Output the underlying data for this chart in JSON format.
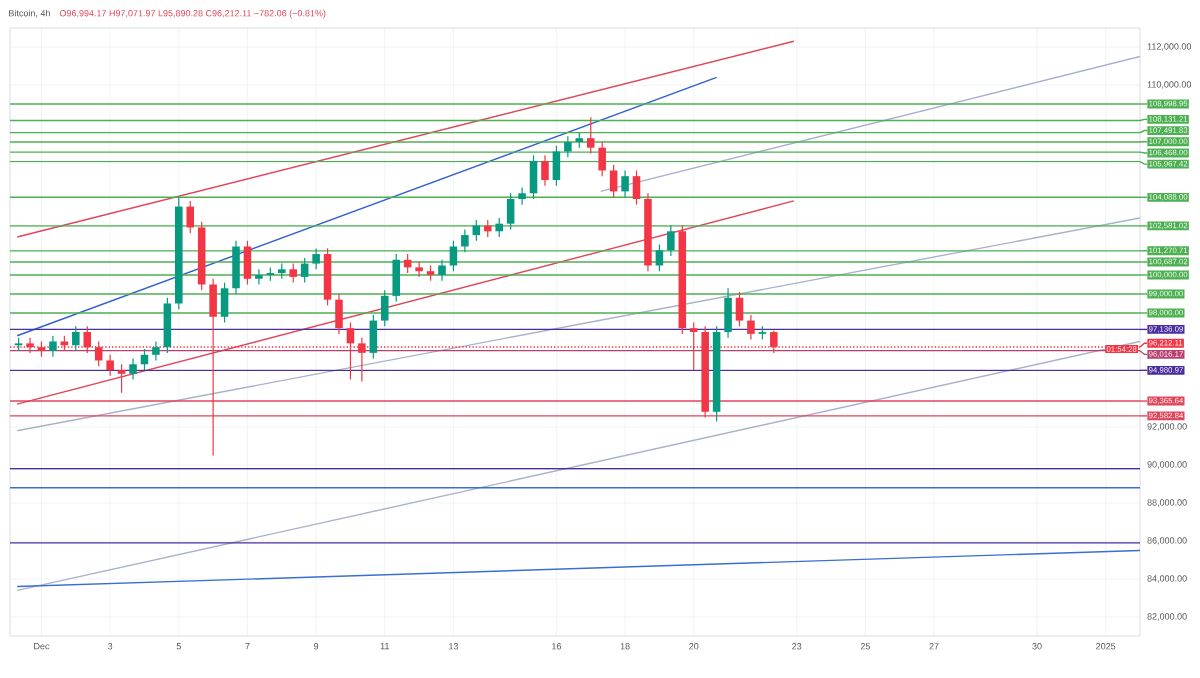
{
  "chart_data": {
    "type": "candlestick",
    "title": "Bitcoin, 4h",
    "annotations": [
      "O96,994.17 H97,071.97 L95,890.28 C96,212.11 −782.06 (−0.81%)",
      {
        "text": "01:54:28",
        "x": "2025-01-02",
        "y": 96100
      }
    ],
    "x": [
      "2024-11-30T08:00",
      "2024-11-30T16:00",
      "2024-12-01T00:00",
      "2024-12-01T08:00",
      "2024-12-01T16:00",
      "2024-12-02T00:00",
      "2024-12-02T08:00",
      "2024-12-02T16:00",
      "2024-12-03T00:00",
      "2024-12-03T08:00",
      "2024-12-03T16:00",
      "2024-12-04T00:00",
      "2024-12-04T08:00",
      "2024-12-04T16:00",
      "2024-12-05T00:00",
      "2024-12-05T08:00",
      "2024-12-05T16:00",
      "2024-12-06T00:00",
      "2024-12-06T08:00",
      "2024-12-06T16:00",
      "2024-12-07T00:00",
      "2024-12-07T08:00",
      "2024-12-07T16:00",
      "2024-12-08T00:00",
      "2024-12-08T08:00",
      "2024-12-08T16:00",
      "2024-12-09T00:00",
      "2024-12-09T08:00",
      "2024-12-09T16:00",
      "2024-12-10T00:00",
      "2024-12-10T08:00",
      "2024-12-10T16:00",
      "2024-12-11T00:00",
      "2024-12-11T08:00",
      "2024-12-11T16:00",
      "2024-12-12T00:00",
      "2024-12-12T08:00",
      "2024-12-12T16:00",
      "2024-12-13T00:00",
      "2024-12-13T08:00",
      "2024-12-13T16:00",
      "2024-12-14T00:00",
      "2024-12-14T08:00",
      "2024-12-14T16:00",
      "2024-12-15T00:00",
      "2024-12-15T08:00",
      "2024-12-15T16:00",
      "2024-12-16T00:00",
      "2024-12-16T08:00",
      "2024-12-16T16:00",
      "2024-12-17T00:00",
      "2024-12-17T08:00",
      "2024-12-17T16:00",
      "2024-12-18T00:00",
      "2024-12-18T08:00",
      "2024-12-18T16:00",
      "2024-12-19T00:00",
      "2024-12-19T08:00",
      "2024-12-19T16:00",
      "2024-12-20T00:00",
      "2024-12-20T08:00",
      "2024-12-20T16:00",
      "2024-12-21T00:00",
      "2024-12-21T08:00",
      "2024-12-21T16:00",
      "2024-12-22T00:00",
      "2024-12-22T08:00"
    ],
    "ohlc": [
      [
        96300,
        96700,
        96000,
        96400
      ],
      [
        96400,
        96700,
        95900,
        96200
      ],
      [
        96200,
        96500,
        95700,
        96000
      ],
      [
        96000,
        96800,
        95700,
        96500
      ],
      [
        96500,
        96800,
        96000,
        96300
      ],
      [
        96300,
        97300,
        96000,
        97000
      ],
      [
        97000,
        97300,
        95900,
        96200
      ],
      [
        96200,
        96500,
        95200,
        95500
      ],
      [
        95500,
        95800,
        94700,
        95000
      ],
      [
        95000,
        95300,
        93800,
        94800
      ],
      [
        94800,
        95600,
        94500,
        95300
      ],
      [
        95300,
        96100,
        95000,
        95800
      ],
      [
        95800,
        96500,
        95500,
        96200
      ],
      [
        96200,
        98800,
        95900,
        98500
      ],
      [
        98500,
        104100,
        98200,
        103600
      ],
      [
        103600,
        103900,
        102200,
        102500
      ],
      [
        102500,
        102800,
        99200,
        99500
      ],
      [
        99500,
        99800,
        90500,
        97800
      ],
      [
        97800,
        99600,
        97500,
        99300
      ],
      [
        99300,
        101800,
        99000,
        101500
      ],
      [
        101500,
        101800,
        99500,
        99800
      ],
      [
        99800,
        100300,
        99500,
        100000
      ],
      [
        100000,
        100400,
        99700,
        100100
      ],
      [
        100100,
        100600,
        99800,
        100300
      ],
      [
        100300,
        100600,
        99600,
        99900
      ],
      [
        99900,
        100900,
        99600,
        100600
      ],
      [
        100600,
        101400,
        100300,
        101100
      ],
      [
        101100,
        101400,
        98400,
        98700
      ],
      [
        98700,
        99000,
        96900,
        97200
      ],
      [
        97200,
        97500,
        94500,
        96400
      ],
      [
        96400,
        96700,
        94400,
        95900
      ],
      [
        95900,
        97900,
        95600,
        97600
      ],
      [
        97600,
        99200,
        97300,
        98900
      ],
      [
        98900,
        101100,
        98600,
        100800
      ],
      [
        100800,
        101100,
        100100,
        100400
      ],
      [
        100400,
        100700,
        99900,
        100200
      ],
      [
        100200,
        100500,
        99700,
        100000
      ],
      [
        100000,
        100800,
        99700,
        100500
      ],
      [
        100500,
        101800,
        100200,
        101500
      ],
      [
        101500,
        102400,
        101200,
        102100
      ],
      [
        102100,
        102900,
        101800,
        102600
      ],
      [
        102600,
        102900,
        102000,
        102300
      ],
      [
        102300,
        103000,
        102000,
        102700
      ],
      [
        102700,
        104300,
        102400,
        104000
      ],
      [
        104000,
        104600,
        103700,
        104300
      ],
      [
        104300,
        106300,
        104000,
        106000
      ],
      [
        106000,
        106300,
        104700,
        105000
      ],
      [
        105000,
        106800,
        104700,
        106500
      ],
      [
        106500,
        107300,
        106200,
        107000
      ],
      [
        107000,
        107500,
        106700,
        107200
      ],
      [
        107200,
        108300,
        106400,
        106700
      ],
      [
        106700,
        107000,
        105200,
        105500
      ],
      [
        105500,
        105800,
        104100,
        104400
      ],
      [
        104400,
        105500,
        104100,
        105200
      ],
      [
        105200,
        105500,
        103700,
        104000
      ],
      [
        104000,
        104300,
        100200,
        100500
      ],
      [
        100500,
        101600,
        100200,
        101300
      ],
      [
        101300,
        102600,
        101000,
        102300
      ],
      [
        102300,
        102600,
        96900,
        97200
      ],
      [
        97200,
        97500,
        95000,
        97000
      ],
      [
        97000,
        97300,
        92500,
        92800
      ],
      [
        92800,
        97300,
        92300,
        97000
      ],
      [
        97000,
        99300,
        96700,
        98800
      ],
      [
        98800,
        99100,
        97300,
        97600
      ],
      [
        97600,
        97900,
        96600,
        96900
      ],
      [
        96900,
        97300,
        96600,
        96994.17
      ],
      [
        96994.17,
        97071.97,
        95890.28,
        96212.11
      ]
    ],
    "series": [
      {
        "type": "line",
        "color": "#e0455a",
        "x": [
          "2024-11-30T07:00",
          "2024-12-22T22:00"
        ],
        "values": [
          102000,
          112300
        ]
      },
      {
        "type": "line",
        "color": "#e0455a",
        "x": [
          "2024-11-30T07:00",
          "2024-12-22T22:00"
        ],
        "values": [
          93200,
          103900
        ]
      },
      {
        "type": "line",
        "color": "#2f5fd0",
        "x": [
          "2024-11-30T07:00",
          "2024-12-20T16:00"
        ],
        "values": [
          96800,
          110400
        ]
      },
      {
        "type": "line",
        "color": "#a8b2cc",
        "x": [
          "2024-11-30T07:00",
          "2025-01-02"
        ],
        "values": [
          91800,
          103000
        ]
      },
      {
        "type": "line",
        "color": "#a8b2cc",
        "x": [
          "2024-11-30T07:00",
          "2025-01-02"
        ],
        "values": [
          83400,
          96500
        ]
      },
      {
        "type": "line",
        "color": "#a8b2cc",
        "x": [
          "2024-12-17T07:00",
          "2025-01-02"
        ],
        "values": [
          104400,
          111500
        ]
      },
      {
        "type": "line",
        "color": "#3a6fd0",
        "x": [
          "2024-11-30T07:00",
          "2025-01-02"
        ],
        "values": [
          83600,
          85500
        ]
      }
    ],
    "ref_lines": [
      {
        "axis": "y",
        "value": 108998.95,
        "label": "108,998.95",
        "color": "#4caf50"
      },
      {
        "axis": "y",
        "value": 108131.21,
        "label": "108,131.21",
        "color": "#4caf50"
      },
      {
        "axis": "y",
        "value": 107491.83,
        "label": "107,491.83",
        "color": "#4caf50"
      },
      {
        "axis": "y",
        "value": 107000,
        "label": "107,000.00",
        "color": "#4caf50"
      },
      {
        "axis": "y",
        "value": 106468,
        "label": "106,468.00",
        "color": "#4caf50"
      },
      {
        "axis": "y",
        "value": 105967.42,
        "label": "105,967.42",
        "color": "#4caf50"
      },
      {
        "axis": "y",
        "value": 104088,
        "label": "104,088.00",
        "color": "#4caf50"
      },
      {
        "axis": "y",
        "value": 102581.02,
        "label": "102,581.02",
        "color": "#4caf50"
      },
      {
        "axis": "y",
        "value": 101270.71,
        "label": "101,270.71",
        "color": "#4caf50"
      },
      {
        "axis": "y",
        "value": 100687.02,
        "label": "100,687.02",
        "color": "#4caf50"
      },
      {
        "axis": "y",
        "value": 100000,
        "label": "100,000.00",
        "color": "#4caf50"
      },
      {
        "axis": "y",
        "value": 99000,
        "label": "99,000.00",
        "color": "#4caf50"
      },
      {
        "axis": "y",
        "value": 98000,
        "label": "98,000.00",
        "color": "#4caf50"
      },
      {
        "axis": "y",
        "value": 97136.09,
        "label": "97,136.09",
        "color": "#4a2fa0"
      },
      {
        "axis": "y",
        "value": 96212.11,
        "label": "96,212.11",
        "color": "#f23645",
        "line_style": "dotted"
      },
      {
        "axis": "y",
        "value": 96016.17,
        "label": "96,016.17",
        "color": "#b8406e"
      },
      {
        "axis": "y",
        "value": 94980.97,
        "label": "94,980.97",
        "color": "#4a2c9a"
      },
      {
        "axis": "y",
        "value": 93365.64,
        "label": "93,365.64",
        "color": "#e0455a"
      },
      {
        "axis": "y",
        "value": 92582.84,
        "label": "92,582.84",
        "color": "#e0455a"
      },
      {
        "axis": "y",
        "value": 89800,
        "color": "#4a2c9a"
      },
      {
        "axis": "y",
        "value": 88800,
        "color": "#3a6fd0"
      },
      {
        "axis": "y",
        "value": 85900,
        "color": "#4a2c9a"
      }
    ],
    "xlim": [
      "2024-11-30T02:00",
      "2025-01-02"
    ],
    "ylim": [
      81000,
      113000
    ],
    "xticks": [
      {
        "value": "2024-12-01",
        "label": "Dec"
      },
      {
        "value": "2024-12-03",
        "label": "3"
      },
      {
        "value": "2024-12-05",
        "label": "5"
      },
      {
        "value": "2024-12-07",
        "label": "7"
      },
      {
        "value": "2024-12-09",
        "label": "9"
      },
      {
        "value": "2024-12-11",
        "label": "11"
      },
      {
        "value": "2024-12-13",
        "label": "13"
      },
      {
        "value": "2024-12-16",
        "label": "16"
      },
      {
        "value": "2024-12-18",
        "label": "18"
      },
      {
        "value": "2024-12-20",
        "label": "20"
      },
      {
        "value": "2024-12-23",
        "label": "23"
      },
      {
        "value": "2024-12-25",
        "label": "25"
      },
      {
        "value": "2024-12-27",
        "label": "27"
      },
      {
        "value": "2024-12-30",
        "label": "30"
      },
      {
        "value": "2025-01-01",
        "label": "2025"
      }
    ],
    "yticks": [
      {
        "value": 82000,
        "label": "82,000.00"
      },
      {
        "value": 84000,
        "label": "84,000.00"
      },
      {
        "value": 86000,
        "label": "86,000.00"
      },
      {
        "value": 88000,
        "label": "88,000.00"
      },
      {
        "value": 90000,
        "label": "90,000.00"
      },
      {
        "value": 92000,
        "label": "92,000.00"
      },
      {
        "value": 110000,
        "label": "110,000.00"
      },
      {
        "value": 112000,
        "label": "112,000.00"
      }
    ],
    "grid": true
  }
}
